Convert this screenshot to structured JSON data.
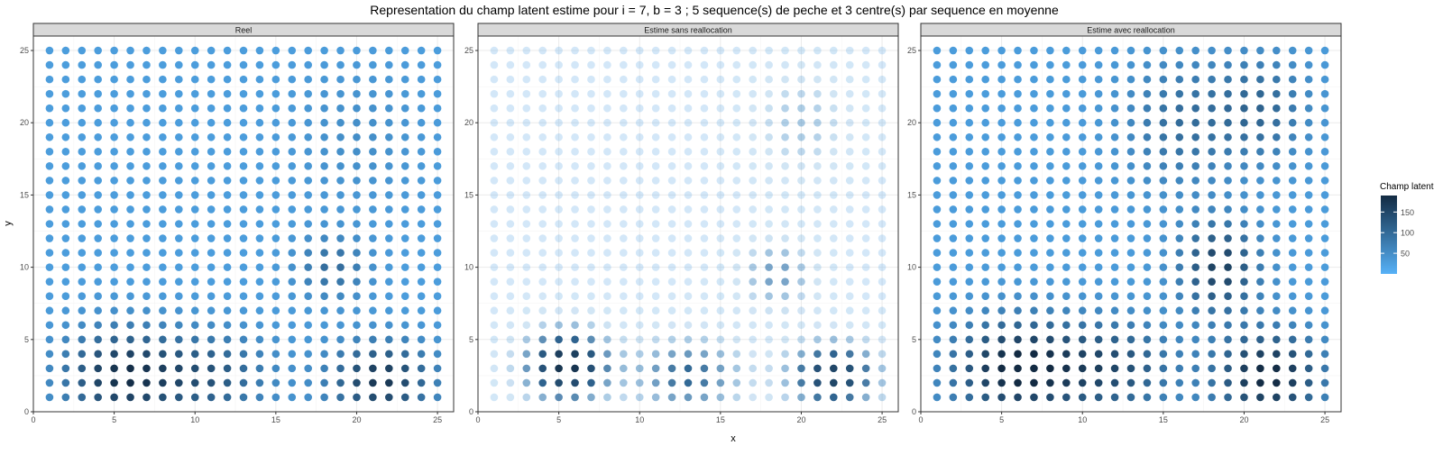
{
  "chart_data": {
    "type": "scatter",
    "title": "Representation du champ latent estime pour i = 7, b = 3 ; 5 sequence(s) de peche et 3 centre(s) par sequence en moyenne",
    "xlabel": "x",
    "ylabel": "y",
    "xlim": [
      0,
      26
    ],
    "ylim": [
      0,
      26
    ],
    "x_ticks": [
      0,
      5,
      10,
      15,
      20,
      25
    ],
    "y_ticks": [
      0,
      5,
      10,
      15,
      20,
      25
    ],
    "grid": true,
    "grid_points": {
      "x_from": 1,
      "x_to": 25,
      "y_from": 1,
      "y_to": 25
    },
    "legend": {
      "title": "Champ latent",
      "ticks": [
        50,
        100,
        150
      ],
      "range": [
        0,
        190
      ],
      "placement": "right",
      "color_low": "#56b1f7",
      "color_high": "#132b43"
    },
    "panels": [
      {
        "label": "Reel",
        "color_mode": "gradient",
        "base": 28,
        "bumps": [
          {
            "x": 5.5,
            "y": 2.5,
            "amp": 150,
            "sx": 2.5,
            "sy": 2.2
          },
          {
            "x": 21.5,
            "y": 2.2,
            "amp": 145,
            "sx": 2.2,
            "sy": 1.8
          },
          {
            "x": 11,
            "y": 2.5,
            "amp": 95,
            "sx": 2.5,
            "sy": 2
          },
          {
            "x": 18.5,
            "y": 10,
            "amp": 70,
            "sx": 1.5,
            "sy": 1.5
          },
          {
            "x": 20,
            "y": 19,
            "amp": 22,
            "sx": 2.5,
            "sy": 3
          }
        ]
      },
      {
        "label": "Estime sans reallocation",
        "color_mode": "alpha",
        "base": 22,
        "bumps": [
          {
            "x": 5.5,
            "y": 3.2,
            "amp": 160,
            "sx": 1.8,
            "sy": 1.7
          },
          {
            "x": 22,
            "y": 2.5,
            "amp": 135,
            "sx": 1.9,
            "sy": 1.6
          },
          {
            "x": 13,
            "y": 2.5,
            "amp": 85,
            "sx": 2.3,
            "sy": 1.8
          },
          {
            "x": 18.5,
            "y": 9.5,
            "amp": 60,
            "sx": 1.5,
            "sy": 1.6
          },
          {
            "x": 20,
            "y": 20,
            "amp": 35,
            "sx": 2,
            "sy": 2.5
          }
        ]
      },
      {
        "label": "Estime avec reallocation",
        "color_mode": "gradient",
        "base": 30,
        "bumps": [
          {
            "x": 6,
            "y": 3,
            "amp": 170,
            "sx": 2.8,
            "sy": 2.3
          },
          {
            "x": 21.5,
            "y": 2.5,
            "amp": 165,
            "sx": 2.3,
            "sy": 2.1
          },
          {
            "x": 12,
            "y": 3,
            "amp": 105,
            "sx": 2.6,
            "sy": 2.2
          },
          {
            "x": 18.5,
            "y": 10,
            "amp": 130,
            "sx": 1.7,
            "sy": 2.2
          },
          {
            "x": 16,
            "y": 20,
            "amp": 65,
            "sx": 2.3,
            "sy": 3
          },
          {
            "x": 21,
            "y": 21,
            "amp": 75,
            "sx": 2,
            "sy": 2.5
          }
        ]
      }
    ]
  }
}
